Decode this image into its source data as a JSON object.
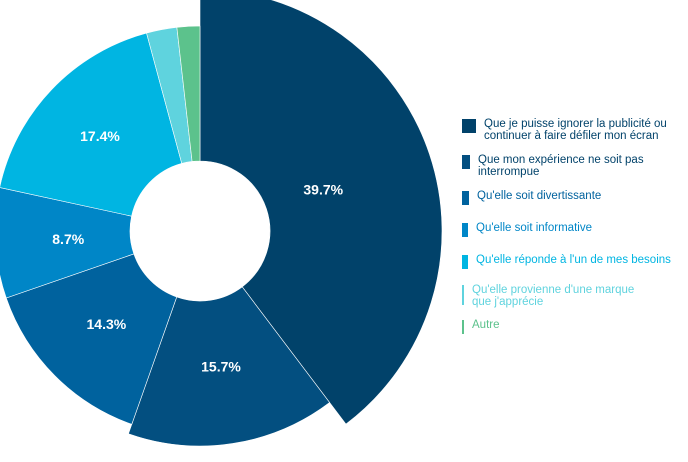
{
  "chart_data": {
    "type": "pie",
    "donut": true,
    "title": "",
    "categories": [
      "Que je puisse ignorer la publicité ou\ncontinuer à faire défiler mon écran",
      "Que mon expérience ne soit pas\ninterrompue",
      "Qu'elle soit divertissante",
      "Qu'elle soit informative",
      "Qu'elle réponde à l'un de mes besoins",
      "Qu'elle provienne d'une marque\nque j'apprécie",
      "Autre"
    ],
    "values": [
      39.7,
      15.7,
      14.3,
      8.7,
      17.4,
      2.4,
      1.8
    ],
    "value_labels": [
      "39.7%",
      "15.7%",
      "14.3%",
      "8.7%",
      "17.4%",
      "",
      ""
    ],
    "colors": [
      "#01426a",
      "#034f80",
      "#00629e",
      "#0086c7",
      "#00b5e2",
      "#5fd3de",
      "#5cc28c"
    ],
    "legend_text_colors": [
      "#01426a",
      "#01426a",
      "#00629e",
      "#0086c7",
      "#00b5e2",
      "#5fd3de",
      "#5cc28c"
    ],
    "legend_position": "right"
  }
}
